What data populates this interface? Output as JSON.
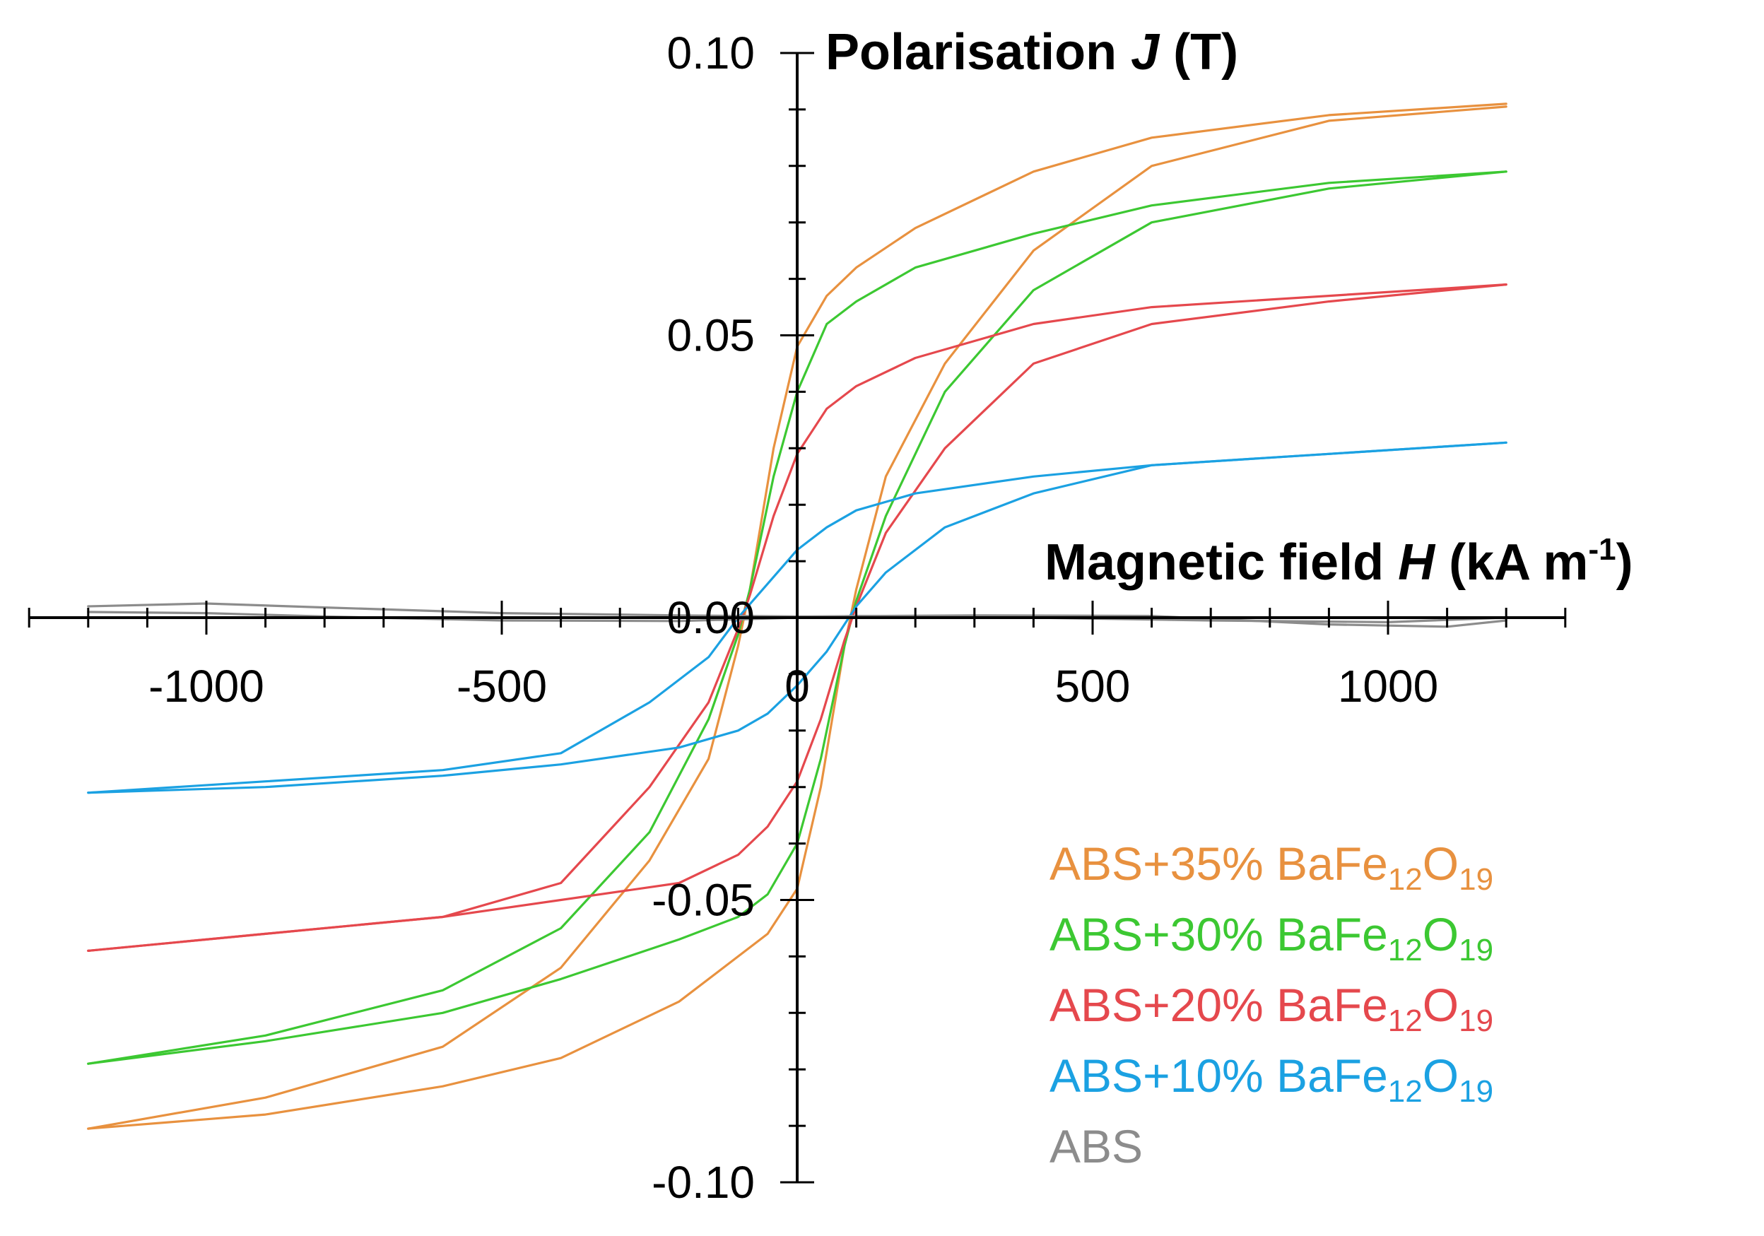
{
  "chart_data": {
    "type": "line",
    "title": "",
    "x_axis": {
      "label_prefix": "Magnetic field ",
      "label_var": "H",
      "label_unit": " (kA m",
      "label_sup": "-1",
      "label_end": ")",
      "range": [
        -1300,
        1300
      ],
      "ticks": [
        "-1000",
        "-500",
        "0",
        "500",
        "1000"
      ]
    },
    "y_axis": {
      "label_prefix": "Polarisation ",
      "label_var": "J",
      "label_unit": " (T)",
      "range": [
        -0.1,
        0.1
      ],
      "ticks": [
        "0.10",
        "0.05",
        "0.00",
        "-0.05",
        "-0.10"
      ]
    },
    "legend_position": "bottom-right",
    "series": [
      {
        "name": "ABS+35% BaFe12O19",
        "legend_main": "ABS+35% BaFe",
        "legend_sub1": "12",
        "legend_mid": "O",
        "legend_sub2": "19",
        "color": "#E8913F",
        "branches": [
          [
            [
              1200,
              0.091
            ],
            [
              900,
              0.089
            ],
            [
              600,
              0.085
            ],
            [
              400,
              0.079
            ],
            [
              200,
              0.069
            ],
            [
              100,
              0.062
            ],
            [
              50,
              0.057
            ],
            [
              0,
              0.048
            ],
            [
              -40,
              0.03
            ],
            [
              -80,
              0.005
            ],
            [
              -100,
              -0.005
            ],
            [
              -150,
              -0.025
            ],
            [
              -250,
              -0.043
            ],
            [
              -400,
              -0.062
            ],
            [
              -600,
              -0.076
            ],
            [
              -900,
              -0.085
            ],
            [
              -1200,
              -0.0905
            ]
          ],
          [
            [
              -1200,
              -0.0905
            ],
            [
              -900,
              -0.088
            ],
            [
              -600,
              -0.083
            ],
            [
              -400,
              -0.078
            ],
            [
              -200,
              -0.068
            ],
            [
              -100,
              -0.06
            ],
            [
              -50,
              -0.056
            ],
            [
              0,
              -0.048
            ],
            [
              40,
              -0.03
            ],
            [
              80,
              -0.005
            ],
            [
              100,
              0.005
            ],
            [
              150,
              0.025
            ],
            [
              250,
              0.045
            ],
            [
              400,
              0.065
            ],
            [
              600,
              0.08
            ],
            [
              900,
              0.088
            ],
            [
              1200,
              0.0905
            ]
          ]
        ]
      },
      {
        "name": "ABS+30% BaFe12O19",
        "legend_main": "ABS+30% BaFe",
        "legend_sub1": "12",
        "legend_mid": "O",
        "legend_sub2": "19",
        "color": "#3CC832",
        "branches": [
          [
            [
              1200,
              0.079
            ],
            [
              900,
              0.077
            ],
            [
              600,
              0.073
            ],
            [
              400,
              0.068
            ],
            [
              200,
              0.062
            ],
            [
              100,
              0.056
            ],
            [
              50,
              0.052
            ],
            [
              0,
              0.04
            ],
            [
              -40,
              0.025
            ],
            [
              -80,
              0.005
            ],
            [
              -100,
              -0.003
            ],
            [
              -150,
              -0.018
            ],
            [
              -250,
              -0.038
            ],
            [
              -400,
              -0.055
            ],
            [
              -600,
              -0.066
            ],
            [
              -900,
              -0.074
            ],
            [
              -1200,
              -0.079
            ]
          ],
          [
            [
              -1200,
              -0.079
            ],
            [
              -900,
              -0.075
            ],
            [
              -600,
              -0.07
            ],
            [
              -400,
              -0.064
            ],
            [
              -200,
              -0.057
            ],
            [
              -100,
              -0.053
            ],
            [
              -50,
              -0.049
            ],
            [
              0,
              -0.04
            ],
            [
              40,
              -0.025
            ],
            [
              80,
              -0.005
            ],
            [
              100,
              0.003
            ],
            [
              150,
              0.018
            ],
            [
              250,
              0.04
            ],
            [
              400,
              0.058
            ],
            [
              600,
              0.07
            ],
            [
              900,
              0.076
            ],
            [
              1200,
              0.079
            ]
          ]
        ]
      },
      {
        "name": "ABS+20% BaFe12O19",
        "legend_main": "ABS+20% BaFe",
        "legend_sub1": "12",
        "legend_mid": "O",
        "legend_sub2": "19",
        "color": "#E5484D",
        "branches": [
          [
            [
              1200,
              0.059
            ],
            [
              900,
              0.057
            ],
            [
              600,
              0.055
            ],
            [
              400,
              0.052
            ],
            [
              200,
              0.046
            ],
            [
              100,
              0.041
            ],
            [
              50,
              0.037
            ],
            [
              0,
              0.029
            ],
            [
              -40,
              0.018
            ],
            [
              -80,
              0.004
            ],
            [
              -100,
              -0.002
            ],
            [
              -150,
              -0.015
            ],
            [
              -250,
              -0.03
            ],
            [
              -400,
              -0.047
            ],
            [
              -600,
              -0.053
            ],
            [
              -900,
              -0.056
            ],
            [
              -1200,
              -0.059
            ]
          ],
          [
            [
              -1200,
              -0.059
            ],
            [
              -900,
              -0.056
            ],
            [
              -600,
              -0.053
            ],
            [
              -400,
              -0.05
            ],
            [
              -200,
              -0.047
            ],
            [
              -100,
              -0.042
            ],
            [
              -50,
              -0.037
            ],
            [
              0,
              -0.029
            ],
            [
              40,
              -0.018
            ],
            [
              80,
              -0.004
            ],
            [
              100,
              0.002
            ],
            [
              150,
              0.015
            ],
            [
              250,
              0.03
            ],
            [
              400,
              0.045
            ],
            [
              600,
              0.052
            ],
            [
              900,
              0.056
            ],
            [
              1200,
              0.059
            ]
          ]
        ]
      },
      {
        "name": "ABS+10% BaFe12O19",
        "legend_main": "ABS+10% BaFe",
        "legend_sub1": "12",
        "legend_mid": "O",
        "legend_sub2": "19",
        "color": "#1BA1E2",
        "branches": [
          [
            [
              1200,
              0.031
            ],
            [
              900,
              0.029
            ],
            [
              600,
              0.027
            ],
            [
              400,
              0.025
            ],
            [
              200,
              0.022
            ],
            [
              100,
              0.019
            ],
            [
              50,
              0.016
            ],
            [
              0,
              0.012
            ],
            [
              -50,
              0.006
            ],
            [
              -100,
              0.0
            ],
            [
              -150,
              -0.007
            ],
            [
              -250,
              -0.015
            ],
            [
              -400,
              -0.024
            ],
            [
              -600,
              -0.027
            ],
            [
              -900,
              -0.029
            ],
            [
              -1200,
              -0.031
            ]
          ],
          [
            [
              -1200,
              -0.031
            ],
            [
              -900,
              -0.03
            ],
            [
              -600,
              -0.028
            ],
            [
              -400,
              -0.026
            ],
            [
              -200,
              -0.023
            ],
            [
              -100,
              -0.02
            ],
            [
              -50,
              -0.017
            ],
            [
              0,
              -0.012
            ],
            [
              50,
              -0.006
            ],
            [
              100,
              0.002
            ],
            [
              150,
              0.008
            ],
            [
              250,
              0.016
            ],
            [
              400,
              0.022
            ],
            [
              600,
              0.027
            ],
            [
              900,
              0.029
            ],
            [
              1200,
              0.031
            ]
          ]
        ]
      },
      {
        "name": "ABS",
        "legend_main": "ABS",
        "legend_sub1": "",
        "legend_mid": "",
        "legend_sub2": "",
        "color": "#8C8C8C",
        "branches": [
          [
            [
              -1200,
              0.002
            ],
            [
              -1000,
              0.0025
            ],
            [
              -800,
              0.0018
            ],
            [
              -500,
              0.0008
            ],
            [
              -200,
              0.0004
            ],
            [
              0,
              0.0002
            ],
            [
              300,
              0.0004
            ],
            [
              600,
              0.0003
            ],
            [
              900,
              -0.0012
            ],
            [
              1100,
              -0.0016
            ],
            [
              1200,
              -0.0005
            ]
          ],
          [
            [
              1200,
              0.0
            ],
            [
              1000,
              -0.0008
            ],
            [
              700,
              -0.0005
            ],
            [
              400,
              0.0
            ],
            [
              100,
              0.0003
            ],
            [
              -200,
              -0.0006
            ],
            [
              -500,
              -0.0005
            ],
            [
              -800,
              0.0002
            ],
            [
              -1000,
              0.0008
            ],
            [
              -1200,
              0.001
            ]
          ]
        ]
      }
    ]
  }
}
